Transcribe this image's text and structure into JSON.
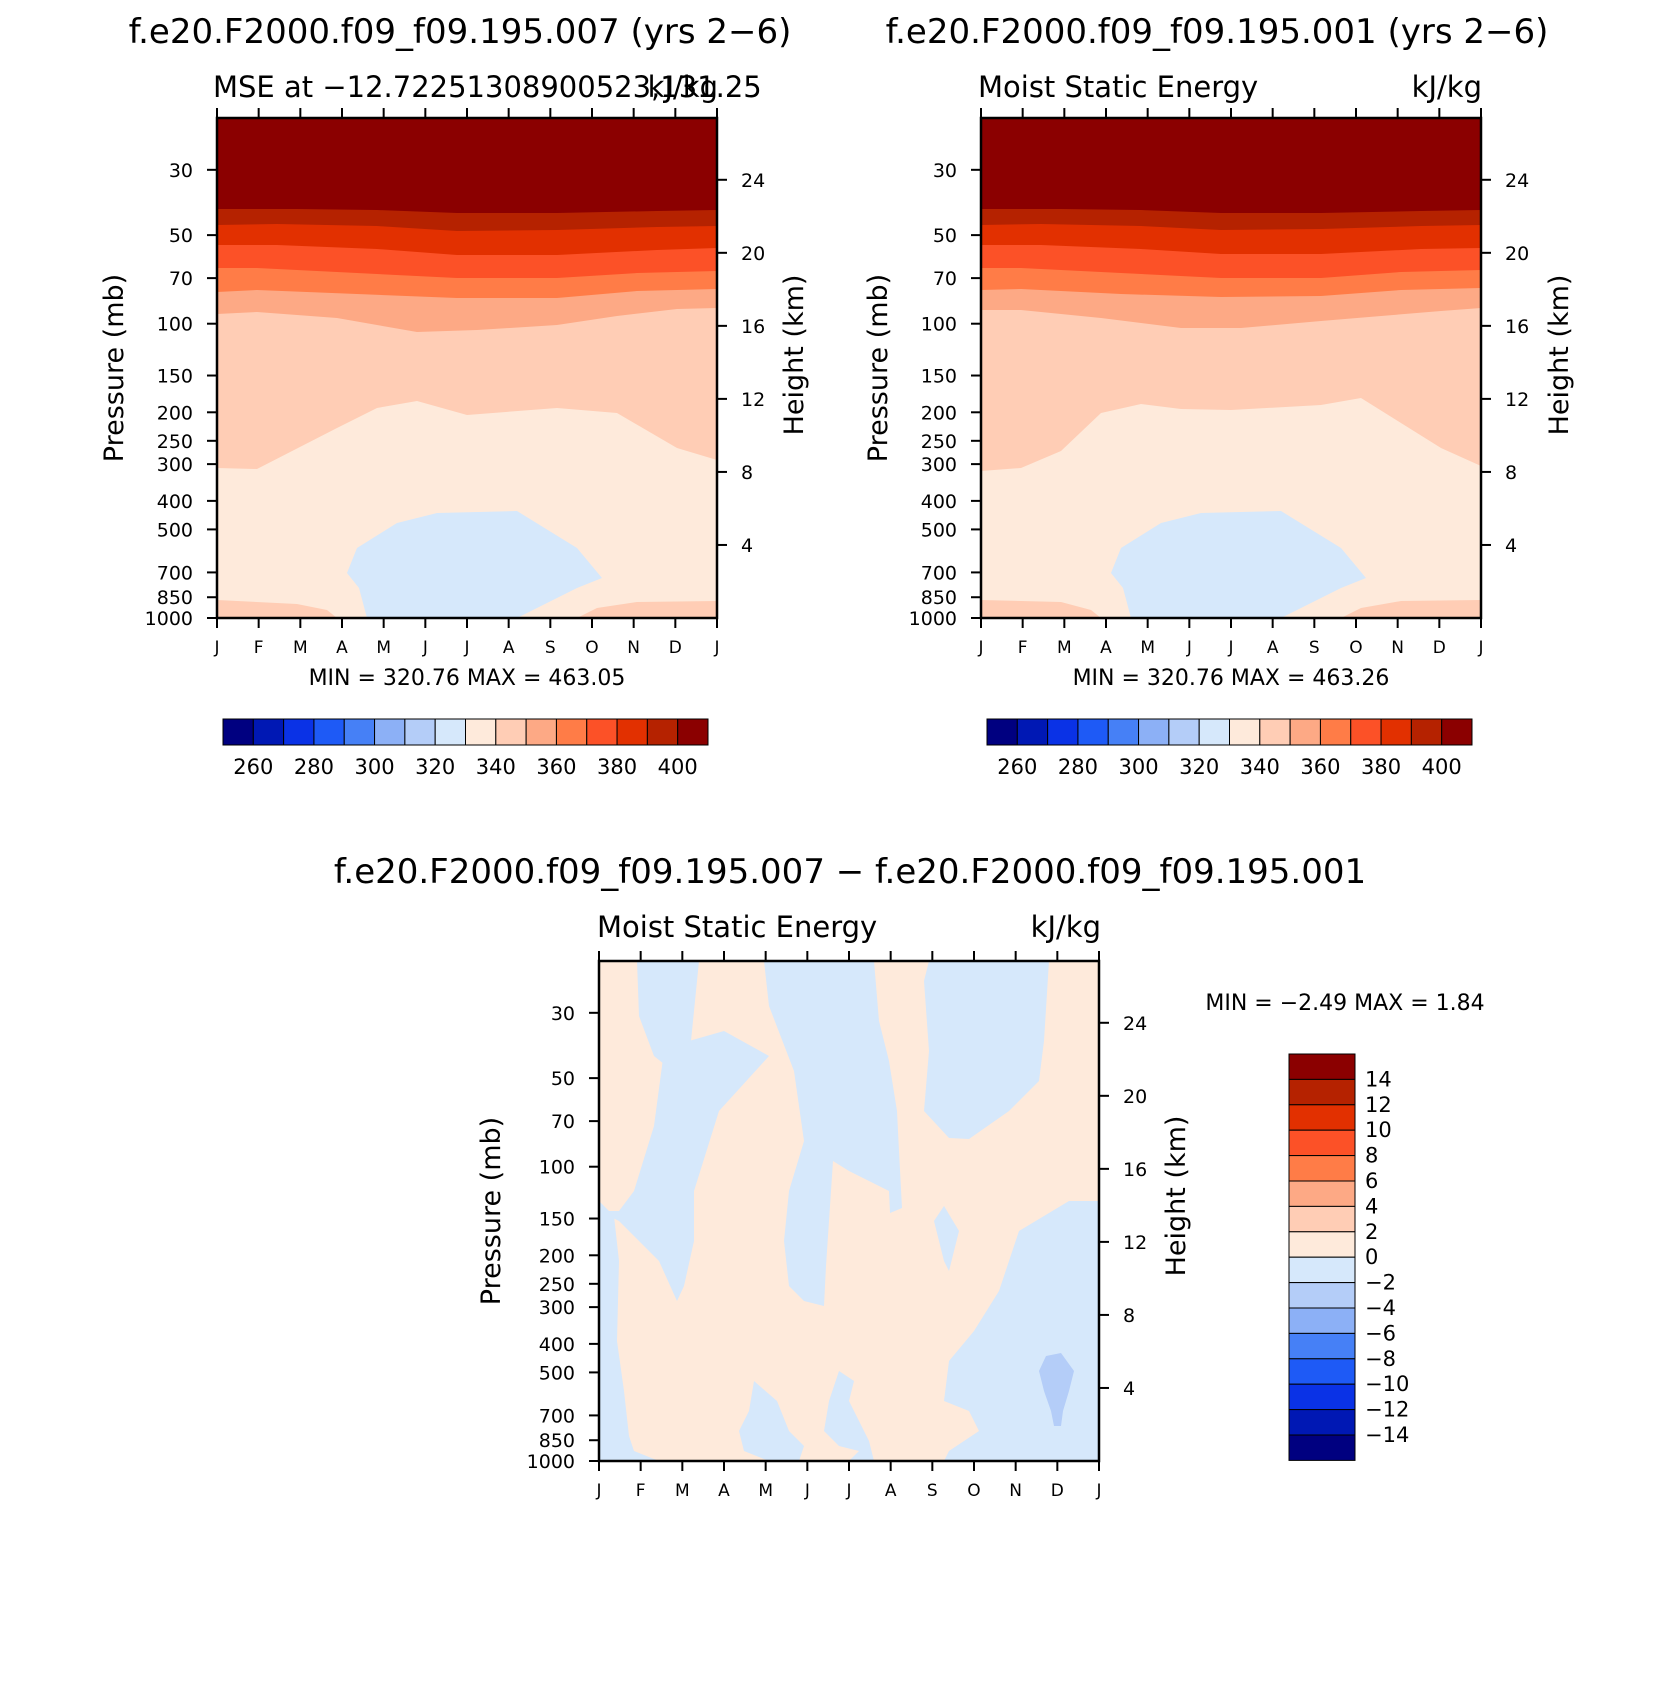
{
  "chart_data": [
    {
      "type": "heatmap",
      "title": "f.e20.F2000.f09_f09.195.007 (yrs 2−6)",
      "subtitle_left": "MSE at −12.72251308900523,131.25",
      "subtitle_right": "kJ/kg",
      "ylabel": "Pressure (mb)",
      "ylabel_right": "Height (km)",
      "x_ticks": [
        "J",
        "F",
        "M",
        "A",
        "M",
        "J",
        "J",
        "A",
        "S",
        "O",
        "N",
        "D",
        "J"
      ],
      "y_ticks": [
        "30",
        "50",
        "70",
        "100",
        "150",
        "200",
        "250",
        "300",
        "400",
        "500",
        "700",
        "850",
        "1000"
      ],
      "y_ticks_right": [
        "24",
        "20",
        "16",
        "12",
        "8",
        "4"
      ],
      "min_max_text": "MIN =  320.76  MAX =  463.05",
      "colorbar_labels": [
        "260",
        "280",
        "300",
        "320",
        "340",
        "360",
        "380",
        "400"
      ],
      "colorbar_colors": [
        "#000080",
        "#0018b4",
        "#0a32e6",
        "#1e5af6",
        "#4680f6",
        "#8cb0f6",
        "#b4cdf8",
        "#d6e8fb",
        "#feeadb",
        "#ffcdb5",
        "#fda985",
        "#ff7c47",
        "#fc5127",
        "#e23000",
        "#b52200",
        "#8b0000"
      ],
      "contour_levels_shown": [
        320,
        330,
        340,
        350,
        360,
        370,
        380,
        390,
        400
      ]
    },
    {
      "type": "heatmap",
      "title": "f.e20.F2000.f09_f09.195.001 (yrs 2−6)",
      "subtitle_left": "Moist Static Energy",
      "subtitle_right": "kJ/kg",
      "ylabel": "Pressure (mb)",
      "ylabel_right": "Height (km)",
      "x_ticks": [
        "J",
        "F",
        "M",
        "A",
        "M",
        "J",
        "J",
        "A",
        "S",
        "O",
        "N",
        "D",
        "J"
      ],
      "y_ticks": [
        "30",
        "50",
        "70",
        "100",
        "150",
        "200",
        "250",
        "300",
        "400",
        "500",
        "700",
        "850",
        "1000"
      ],
      "y_ticks_right": [
        "24",
        "20",
        "16",
        "12",
        "8",
        "4"
      ],
      "min_max_text": "MIN =  320.76  MAX =  463.26",
      "colorbar_labels": [
        "260",
        "280",
        "300",
        "320",
        "340",
        "360",
        "380",
        "400"
      ],
      "colorbar_colors": [
        "#000080",
        "#0018b4",
        "#0a32e6",
        "#1e5af6",
        "#4680f6",
        "#8cb0f6",
        "#b4cdf8",
        "#d6e8fb",
        "#feeadb",
        "#ffcdb5",
        "#fda985",
        "#ff7c47",
        "#fc5127",
        "#e23000",
        "#b52200",
        "#8b0000"
      ]
    },
    {
      "type": "heatmap",
      "title": "f.e20.F2000.f09_f09.195.007 − f.e20.F2000.f09_f09.195.001",
      "subtitle_left": "Moist Static Energy",
      "subtitle_right": "kJ/kg",
      "ylabel": "Pressure (mb)",
      "ylabel_right": "Height (km)",
      "x_ticks": [
        "J",
        "F",
        "M",
        "A",
        "M",
        "J",
        "J",
        "A",
        "S",
        "O",
        "N",
        "D",
        "J"
      ],
      "y_ticks": [
        "30",
        "50",
        "70",
        "100",
        "150",
        "200",
        "250",
        "300",
        "400",
        "500",
        "700",
        "850",
        "1000"
      ],
      "y_ticks_right": [
        "24",
        "20",
        "16",
        "12",
        "8",
        "4"
      ],
      "min_max_text": "MIN =   −2.49  MAX =     1.84",
      "colorbar_labels": [
        "14",
        "12",
        "10",
        "8",
        "6",
        "4",
        "2",
        "0",
        "−2",
        "−4",
        "−6",
        "−8",
        "−10",
        "−12",
        "−14"
      ],
      "colorbar_colors": [
        "#8b0000",
        "#b52200",
        "#e23000",
        "#fc5127",
        "#ff7c47",
        "#fda985",
        "#ffcdb5",
        "#feeadb",
        "#d6e8fb",
        "#b4cdf8",
        "#8cb0f6",
        "#4680f6",
        "#1e5af6",
        "#0a32e6",
        "#0018b4",
        "#000080"
      ],
      "contour_levels_shown": [
        -4,
        -2,
        0,
        2
      ]
    }
  ]
}
